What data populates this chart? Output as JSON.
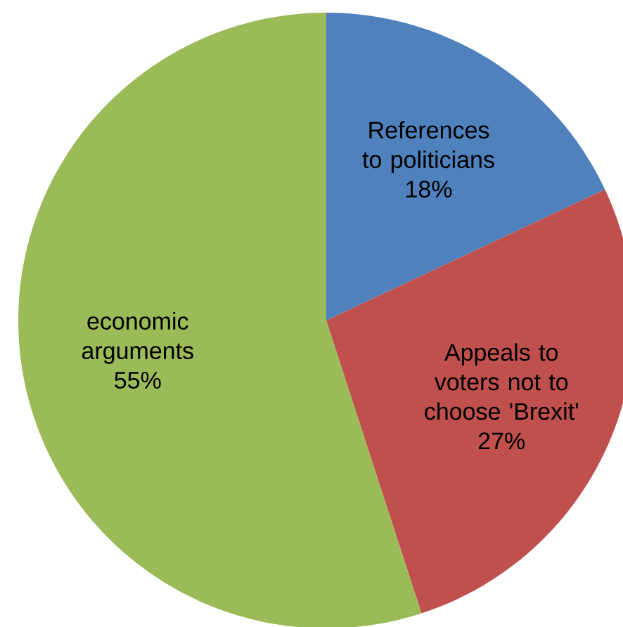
{
  "chart_data": {
    "type": "pie",
    "categories": [
      "References to politicians",
      "Appeals to voters not to choose 'Brexit'",
      "economic arguments"
    ],
    "values": [
      18,
      27,
      55
    ],
    "value_labels": [
      "18%",
      "27%",
      "55%"
    ],
    "colors": [
      "#4f81bd",
      "#c0504d",
      "#9bbb59"
    ]
  }
}
